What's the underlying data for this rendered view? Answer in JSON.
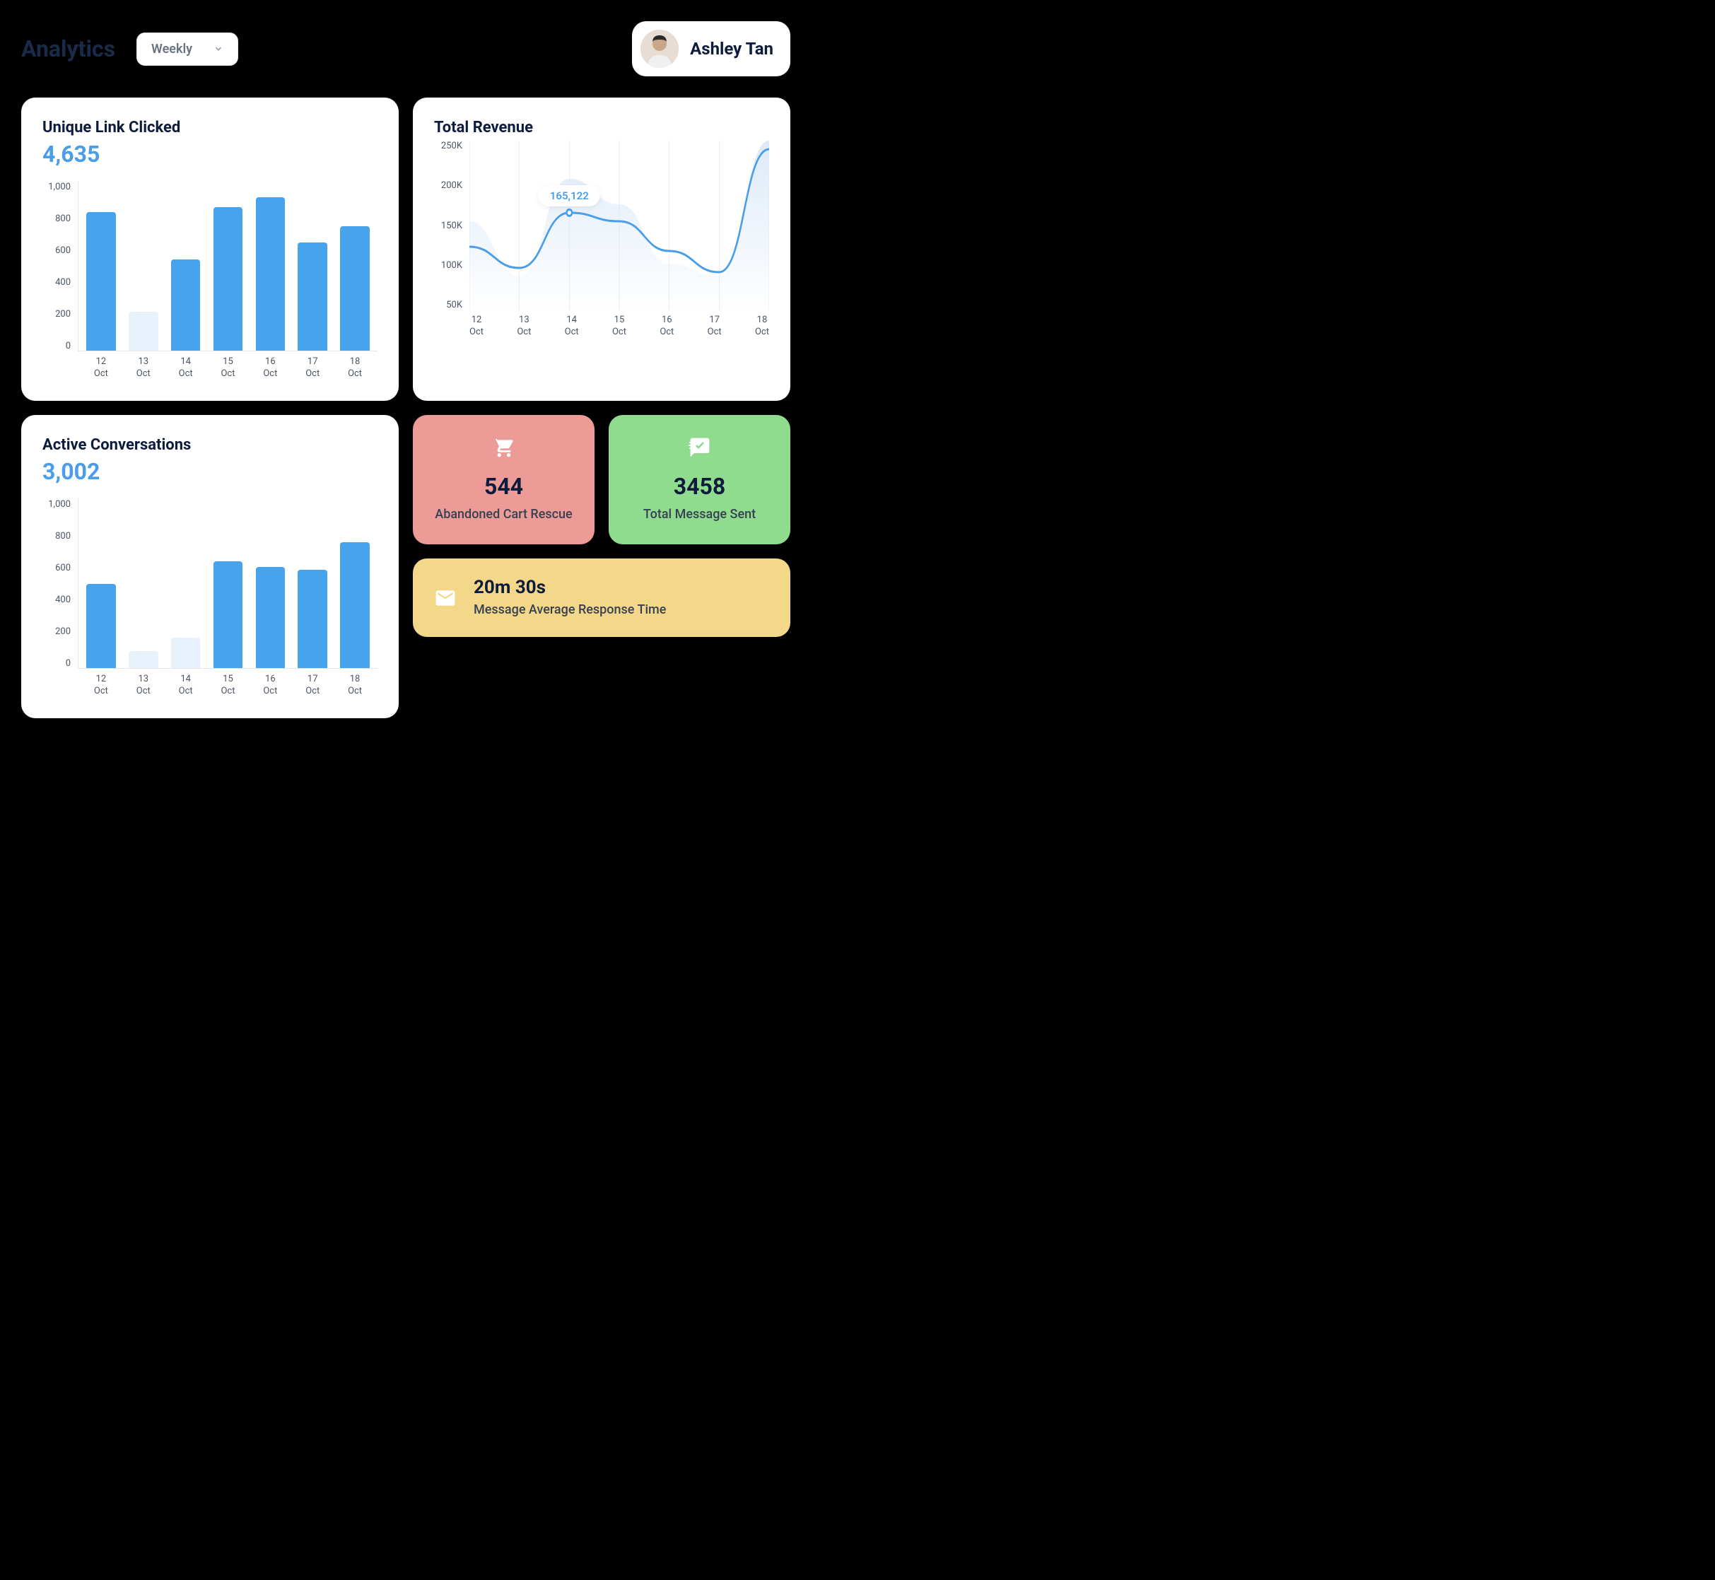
{
  "header": {
    "title": "Analytics",
    "period_selected": "Weekly",
    "user_name": "Ashley Tan"
  },
  "colors": {
    "card_bg": "#ffffff",
    "text_dark": "#0f1b3d",
    "text_muted": "#4b5563",
    "accent_blue": "#4a9de8",
    "bar_primary": "#47a3eb",
    "bar_faded": "#e8f2fc",
    "grid_line": "#e5e7eb",
    "kpi_red_bg": "#ec9b97",
    "kpi_green_bg": "#8fdc8f",
    "kpi_yellow_bg": "#f4d88a"
  },
  "unique_clicks": {
    "title": "Unique Link Clicked",
    "value": "4,635",
    "type": "bar",
    "y_ticks": [
      "1,000",
      "800",
      "600",
      "400",
      "200",
      "0"
    ],
    "y_max": 1000,
    "categories": [
      "12\nOct",
      "13\nOct",
      "14\nOct",
      "15\nOct",
      "16\nOct",
      "17\nOct",
      "18\nOct"
    ],
    "values": [
      820,
      230,
      540,
      850,
      910,
      640,
      735
    ],
    "bar_colors": [
      "#47a3eb",
      "#e8f2fc",
      "#47a3eb",
      "#47a3eb",
      "#47a3eb",
      "#47a3eb",
      "#47a3eb"
    ]
  },
  "revenue": {
    "title": "Total Revenue",
    "type": "line",
    "y_ticks": [
      "250K",
      "200K",
      "150K",
      "100K",
      "50K"
    ],
    "y_min": 50000,
    "y_max": 250000,
    "categories": [
      "12\nOct",
      "13\nOct",
      "14\nOct",
      "15\nOct",
      "16\nOct",
      "17\nOct",
      "18\nOct"
    ],
    "values": [
      125000,
      100000,
      165122,
      155000,
      120000,
      95000,
      240000
    ],
    "line_color": "#4a9de8",
    "area_color": "#d9e7f6",
    "tooltip_index": 2,
    "tooltip_label": "165,122"
  },
  "active_convos": {
    "title": "Active Conversations",
    "value": "3,002",
    "type": "bar",
    "y_ticks": [
      "1,000",
      "800",
      "600",
      "400",
      "200",
      "0"
    ],
    "y_max": 1000,
    "categories": [
      "12\nOct",
      "13\nOct",
      "14\nOct",
      "15\nOct",
      "16\nOct",
      "17\nOct",
      "18\nOct"
    ],
    "values": [
      500,
      100,
      180,
      630,
      600,
      580,
      745
    ],
    "bar_colors": [
      "#47a3eb",
      "#e8f2fc",
      "#e8f2fc",
      "#47a3eb",
      "#47a3eb",
      "#47a3eb",
      "#47a3eb"
    ]
  },
  "kpis": {
    "abandoned": {
      "value": "544",
      "label": "Abandoned Cart Rescue",
      "bg": "#ec9b97"
    },
    "messages": {
      "value": "3458",
      "label": "Total Message Sent",
      "bg": "#8fdc8f"
    },
    "response": {
      "value": "20m 30s",
      "label": "Message Average Response Time",
      "bg": "#f4d88a"
    }
  }
}
